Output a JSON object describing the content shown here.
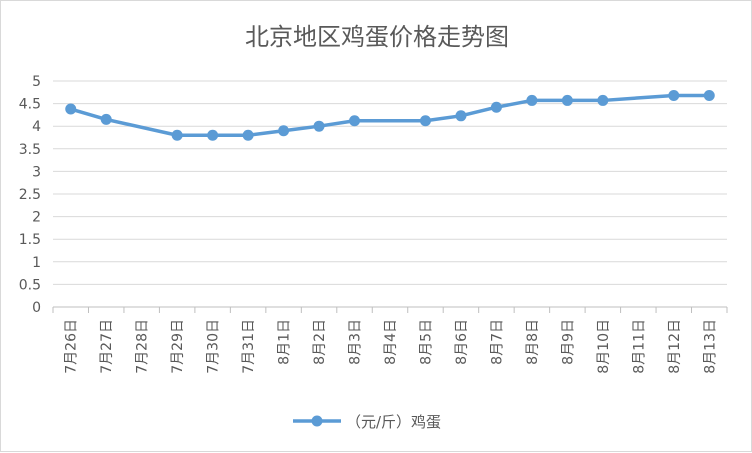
{
  "chart_data": {
    "type": "line",
    "title": "北京地区鸡蛋价格走势图",
    "xlabel": "",
    "ylabel": "",
    "categories": [
      "7月26日",
      "7月27日",
      "7月28日",
      "7月29日",
      "7月30日",
      "7月31日",
      "8月1日",
      "8月2日",
      "8月3日",
      "8月4日",
      "8月5日",
      "8月6日",
      "8月7日",
      "8月8日",
      "8月9日",
      "8月10日",
      "8月11日",
      "8月12日",
      "8月13日"
    ],
    "series": [
      {
        "name": "（元/斤）鸡蛋",
        "color": "#5b9bd5",
        "values": [
          4.38,
          4.15,
          null,
          3.8,
          3.8,
          3.8,
          3.9,
          4.0,
          4.12,
          null,
          4.12,
          4.23,
          4.42,
          4.57,
          4.57,
          4.57,
          null,
          4.68,
          4.68
        ]
      }
    ],
    "ylim": [
      0,
      5
    ],
    "yticks": [
      "0",
      "0.5",
      "1",
      "1.5",
      "2",
      "2.5",
      "3",
      "3.5",
      "4",
      "4.5",
      "5"
    ],
    "grid": true,
    "legend_position": "bottom"
  }
}
